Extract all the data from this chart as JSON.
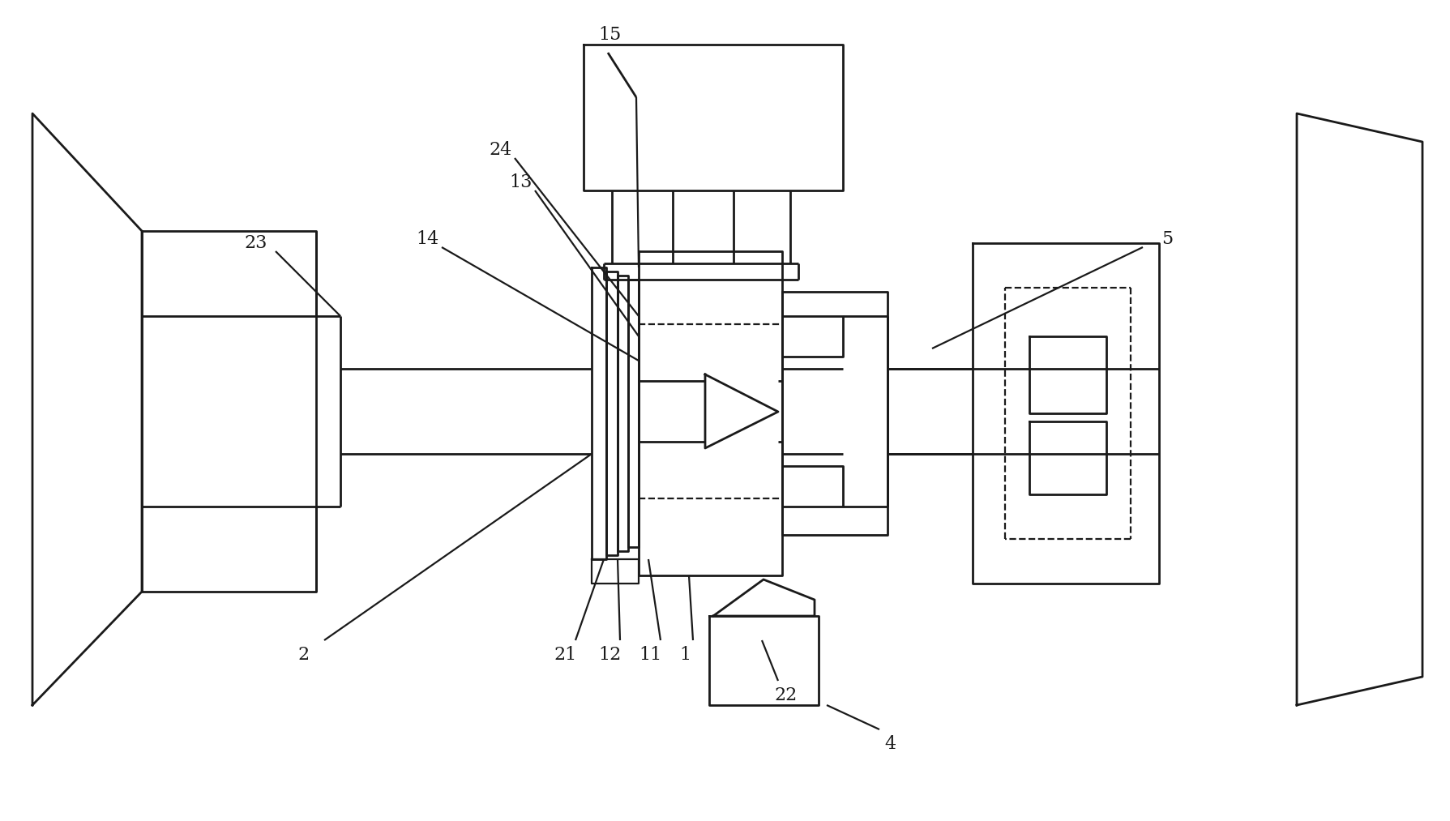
{
  "bg": "#ffffff",
  "lc": "#1a1a1a",
  "lw": 1.6,
  "lw2": 2.0
}
